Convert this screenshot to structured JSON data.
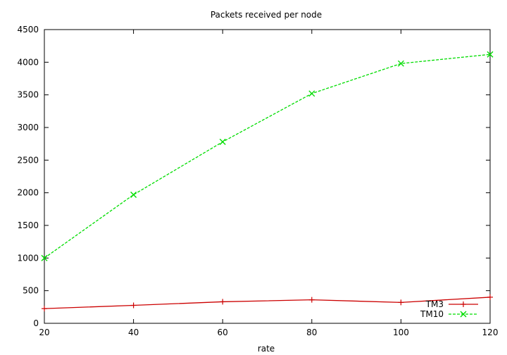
{
  "chart_data": {
    "type": "line",
    "title": "Packets received per node",
    "xlabel": "rate",
    "ylabel": "",
    "xlim": [
      20,
      120
    ],
    "ylim": [
      0,
      4500
    ],
    "x_ticks": [
      20,
      40,
      60,
      80,
      100,
      120
    ],
    "y_ticks": [
      0,
      500,
      1000,
      1500,
      2000,
      2500,
      3000,
      3500,
      4000,
      4500
    ],
    "grid": false,
    "legend_position": "bottom-right",
    "x": [
      20,
      40,
      60,
      80,
      100,
      120
    ],
    "series": [
      {
        "name": "TM3",
        "values": [
          225,
          275,
          330,
          360,
          320,
          400
        ],
        "color": "#cc0000",
        "marker": "plus",
        "dash": "solid"
      },
      {
        "name": "TM10",
        "values": [
          1000,
          1970,
          2780,
          3520,
          3980,
          4120
        ],
        "color": "#00dd00",
        "marker": "cross",
        "dash": "dashed"
      }
    ]
  }
}
